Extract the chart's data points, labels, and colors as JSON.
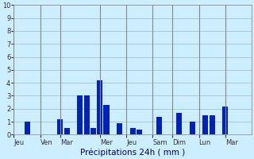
{
  "xlabel": "Précipitations 24h ( mm )",
  "background_color": "#cceeff",
  "bar_color_dark": "#0022bb",
  "bar_color_light": "#3366dd",
  "grid_color": "#99bbbb",
  "vline_color": "#888888",
  "ylim": [
    0,
    10
  ],
  "yticks": [
    0,
    1,
    2,
    3,
    4,
    5,
    6,
    7,
    8,
    9,
    10
  ],
  "bars": [
    {
      "x": 2,
      "height": 1.0
    },
    {
      "x": 7,
      "height": 1.2
    },
    {
      "x": 8,
      "height": 0.5
    },
    {
      "x": 10,
      "height": 3.0
    },
    {
      "x": 11,
      "height": 3.0
    },
    {
      "x": 12,
      "height": 0.5
    },
    {
      "x": 13,
      "height": 4.2
    },
    {
      "x": 14,
      "height": 2.3
    },
    {
      "x": 16,
      "height": 0.9
    },
    {
      "x": 18,
      "height": 0.5
    },
    {
      "x": 19,
      "height": 0.4
    },
    {
      "x": 22,
      "height": 1.4
    },
    {
      "x": 25,
      "height": 1.7
    },
    {
      "x": 27,
      "height": 1.0
    },
    {
      "x": 29,
      "height": 1.5
    },
    {
      "x": 30,
      "height": 1.5
    },
    {
      "x": 32,
      "height": 2.2
    }
  ],
  "day_boundaries": [
    0,
    4,
    7,
    13,
    17,
    21,
    24,
    28,
    32,
    36
  ],
  "day_labels": [
    "Jeu",
    "Ven",
    "Mar",
    "Mer",
    "Jeu",
    "Sam",
    "Dim",
    "Lun",
    "Mar"
  ],
  "xmin": 0,
  "xmax": 36
}
